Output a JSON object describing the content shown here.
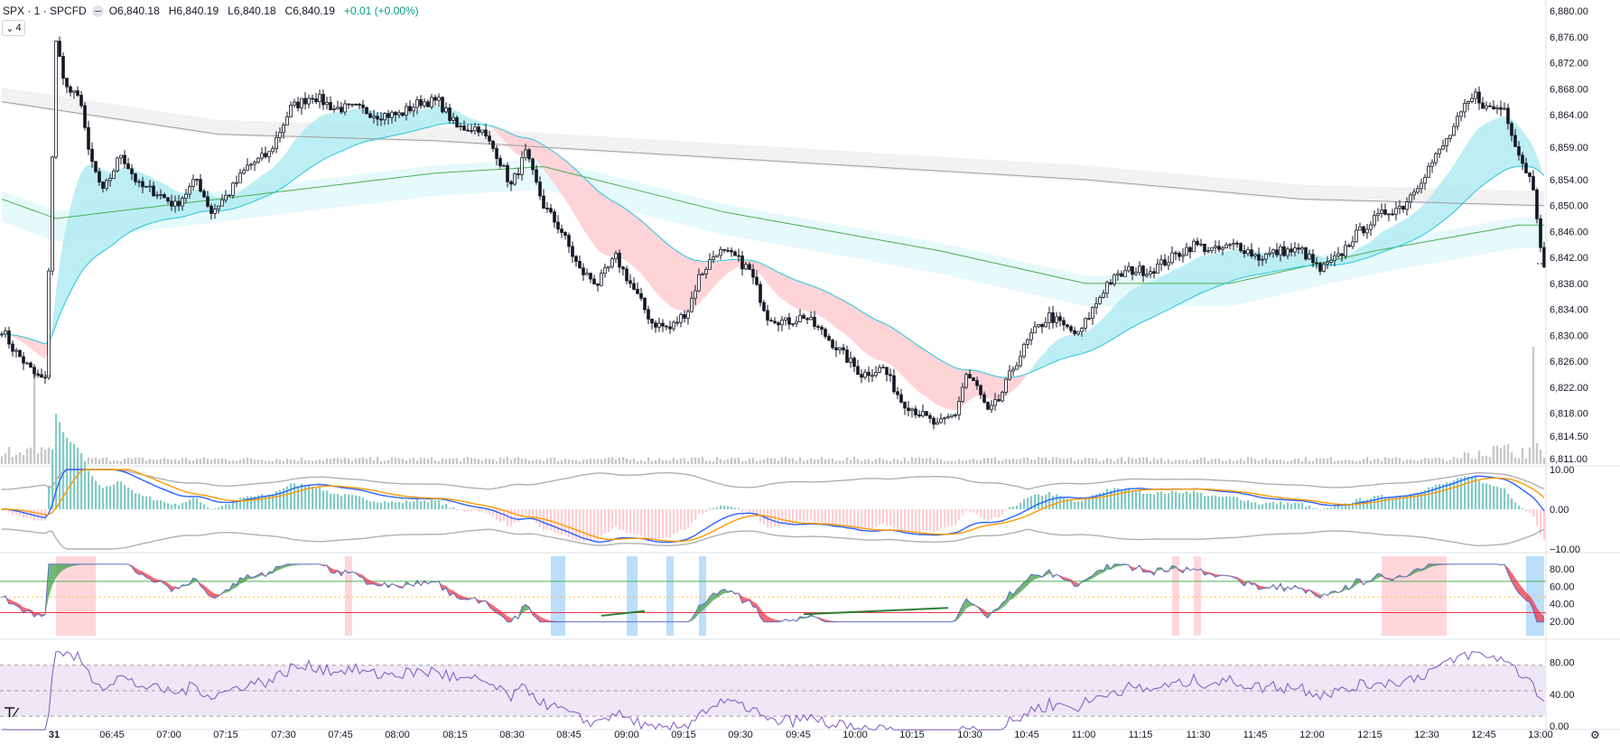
{
  "legend": {
    "symbol": "SPX · 1 · SPCFD",
    "o_key": "O",
    "o_val": "6,840.18",
    "h_key": "H",
    "h_val": "6,840.19",
    "l_key": "L",
    "l_val": "6,840.18",
    "c_key": "C",
    "c_val": "6,840.19",
    "change": "+0.01 (+0.00%)"
  },
  "collapse_label": "4",
  "icons": {
    "logo": "tradingview-logo-icon",
    "settings": "gear-icon",
    "chevron": "chevron-down-icon"
  },
  "colors": {
    "up": "#089981",
    "down": "#f23645",
    "candle": "#131722",
    "grid": "#f0f3fa",
    "teal_band": "#b2ebf2",
    "red_band": "#ffcdd2",
    "rsi_line": "#7e57c2",
    "rsi_bg": "#ede7f6"
  },
  "price_axis": [
    "6,880.00",
    "6,876.00",
    "6,872.00",
    "6,868.00",
    "6,864.00",
    "6,859.00",
    "6,854.00",
    "6,850.00",
    "6,846.00",
    "6,842.00",
    "6,838.00",
    "6,834.00",
    "6,830.00",
    "6,826.00",
    "6,822.00",
    "6,818.00",
    "6,814.50",
    "6,811.00"
  ],
  "macd_axis": [
    "10.00",
    "0.00",
    "−10.00"
  ],
  "stoch_axis": [
    "80.00",
    "60.00",
    "40.00",
    "20.00"
  ],
  "rsi_axis": [
    "80.00",
    "40.00",
    "0.00"
  ],
  "time_axis": [
    "31",
    "06:45",
    "07:00",
    "07:15",
    "07:30",
    "07:45",
    "08:00",
    "08:15",
    "08:30",
    "08:45",
    "09:00",
    "09:15",
    "09:30",
    "09:45",
    "10:00",
    "10:15",
    "10:30",
    "10:45",
    "11:00",
    "11:15",
    "11:30",
    "11:45",
    "12:00",
    "12:15",
    "12:30",
    "12:45",
    "13:00"
  ],
  "chart_data": {
    "type": "candlestick",
    "price_keypoints": [
      [
        0,
        6831
      ],
      [
        3,
        6828
      ],
      [
        6,
        6826
      ],
      [
        9,
        6824
      ],
      [
        12,
        6823
      ],
      [
        15,
        6875
      ],
      [
        18,
        6868
      ],
      [
        22,
        6866
      ],
      [
        24,
        6858
      ],
      [
        28,
        6852
      ],
      [
        33,
        6858
      ],
      [
        38,
        6853
      ],
      [
        43,
        6852
      ],
      [
        48,
        6850
      ],
      [
        54,
        6854
      ],
      [
        58,
        6849
      ],
      [
        63,
        6852
      ],
      [
        68,
        6856
      ],
      [
        74,
        6858
      ],
      [
        80,
        6865
      ],
      [
        86,
        6867
      ],
      [
        92,
        6865
      ],
      [
        98,
        6865
      ],
      [
        104,
        6864
      ],
      [
        110,
        6864
      ],
      [
        116,
        6866
      ],
      [
        121,
        6866
      ],
      [
        126,
        6862
      ],
      [
        132,
        6862
      ],
      [
        137,
        6858
      ],
      [
        141,
        6853
      ],
      [
        145,
        6858
      ],
      [
        150,
        6850
      ],
      [
        155,
        6846
      ],
      [
        160,
        6840
      ],
      [
        165,
        6838
      ],
      [
        170,
        6842
      ],
      [
        175,
        6837
      ],
      [
        180,
        6832
      ],
      [
        185,
        6831
      ],
      [
        190,
        6834
      ],
      [
        193,
        6839
      ],
      [
        198,
        6843
      ],
      [
        203,
        6842
      ],
      [
        207,
        6840
      ],
      [
        212,
        6833
      ],
      [
        217,
        6832
      ],
      [
        222,
        6833
      ],
      [
        228,
        6830
      ],
      [
        233,
        6827
      ],
      [
        238,
        6824
      ],
      [
        244,
        6825
      ],
      [
        249,
        6820
      ],
      [
        254,
        6818
      ],
      [
        259,
        6816
      ],
      [
        264,
        6818
      ],
      [
        267,
        6824
      ],
      [
        270,
        6822
      ],
      [
        273,
        6818
      ],
      [
        276,
        6820
      ],
      [
        280,
        6825
      ],
      [
        285,
        6830
      ],
      [
        290,
        6833
      ],
      [
        295,
        6831
      ],
      [
        298,
        6830
      ],
      [
        302,
        6834
      ],
      [
        306,
        6838
      ],
      [
        312,
        6840
      ],
      [
        318,
        6840
      ],
      [
        324,
        6842
      ],
      [
        330,
        6844
      ],
      [
        336,
        6843
      ],
      [
        342,
        6844
      ],
      [
        348,
        6842
      ],
      [
        354,
        6843
      ],
      [
        360,
        6843
      ],
      [
        365,
        6840
      ],
      [
        370,
        6842
      ],
      [
        374,
        6845
      ],
      [
        378,
        6847
      ],
      [
        383,
        6849
      ],
      [
        388,
        6850
      ],
      [
        394,
        6855
      ],
      [
        400,
        6860
      ],
      [
        405,
        6865
      ],
      [
        408,
        6867
      ],
      [
        411,
        6865
      ],
      [
        416,
        6865
      ],
      [
        420,
        6858
      ],
      [
        424,
        6853
      ],
      [
        427,
        6840
      ]
    ],
    "ma_slow_keypoints": [
      [
        0,
        6866
      ],
      [
        60,
        6861
      ],
      [
        120,
        6860
      ],
      [
        180,
        6858
      ],
      [
        240,
        6856
      ],
      [
        300,
        6854
      ],
      [
        360,
        6851
      ],
      [
        427,
        6850
      ]
    ],
    "ma_green_keypoints": [
      [
        0,
        6851
      ],
      [
        15,
        6848
      ],
      [
        60,
        6851
      ],
      [
        120,
        6855
      ],
      [
        150,
        6856
      ],
      [
        200,
        6849
      ],
      [
        260,
        6843
      ],
      [
        300,
        6838
      ],
      [
        340,
        6838
      ],
      [
        380,
        6843
      ],
      [
        420,
        6847
      ],
      [
        427,
        6847
      ]
    ],
    "macd_axis_range": [
      -10,
      10
    ],
    "stoch_range": [
      0,
      100
    ],
    "rsi_range": [
      0,
      100
    ],
    "stoch_highlight_red": [
      [
        15,
        26
      ],
      [
        95,
        97
      ],
      [
        324,
        326
      ],
      [
        330,
        332
      ],
      [
        382,
        400
      ]
    ],
    "stoch_highlight_blue": [
      [
        152,
        156
      ],
      [
        173,
        176
      ],
      [
        184,
        186
      ],
      [
        193,
        195
      ],
      [
        422,
        427
      ]
    ]
  }
}
